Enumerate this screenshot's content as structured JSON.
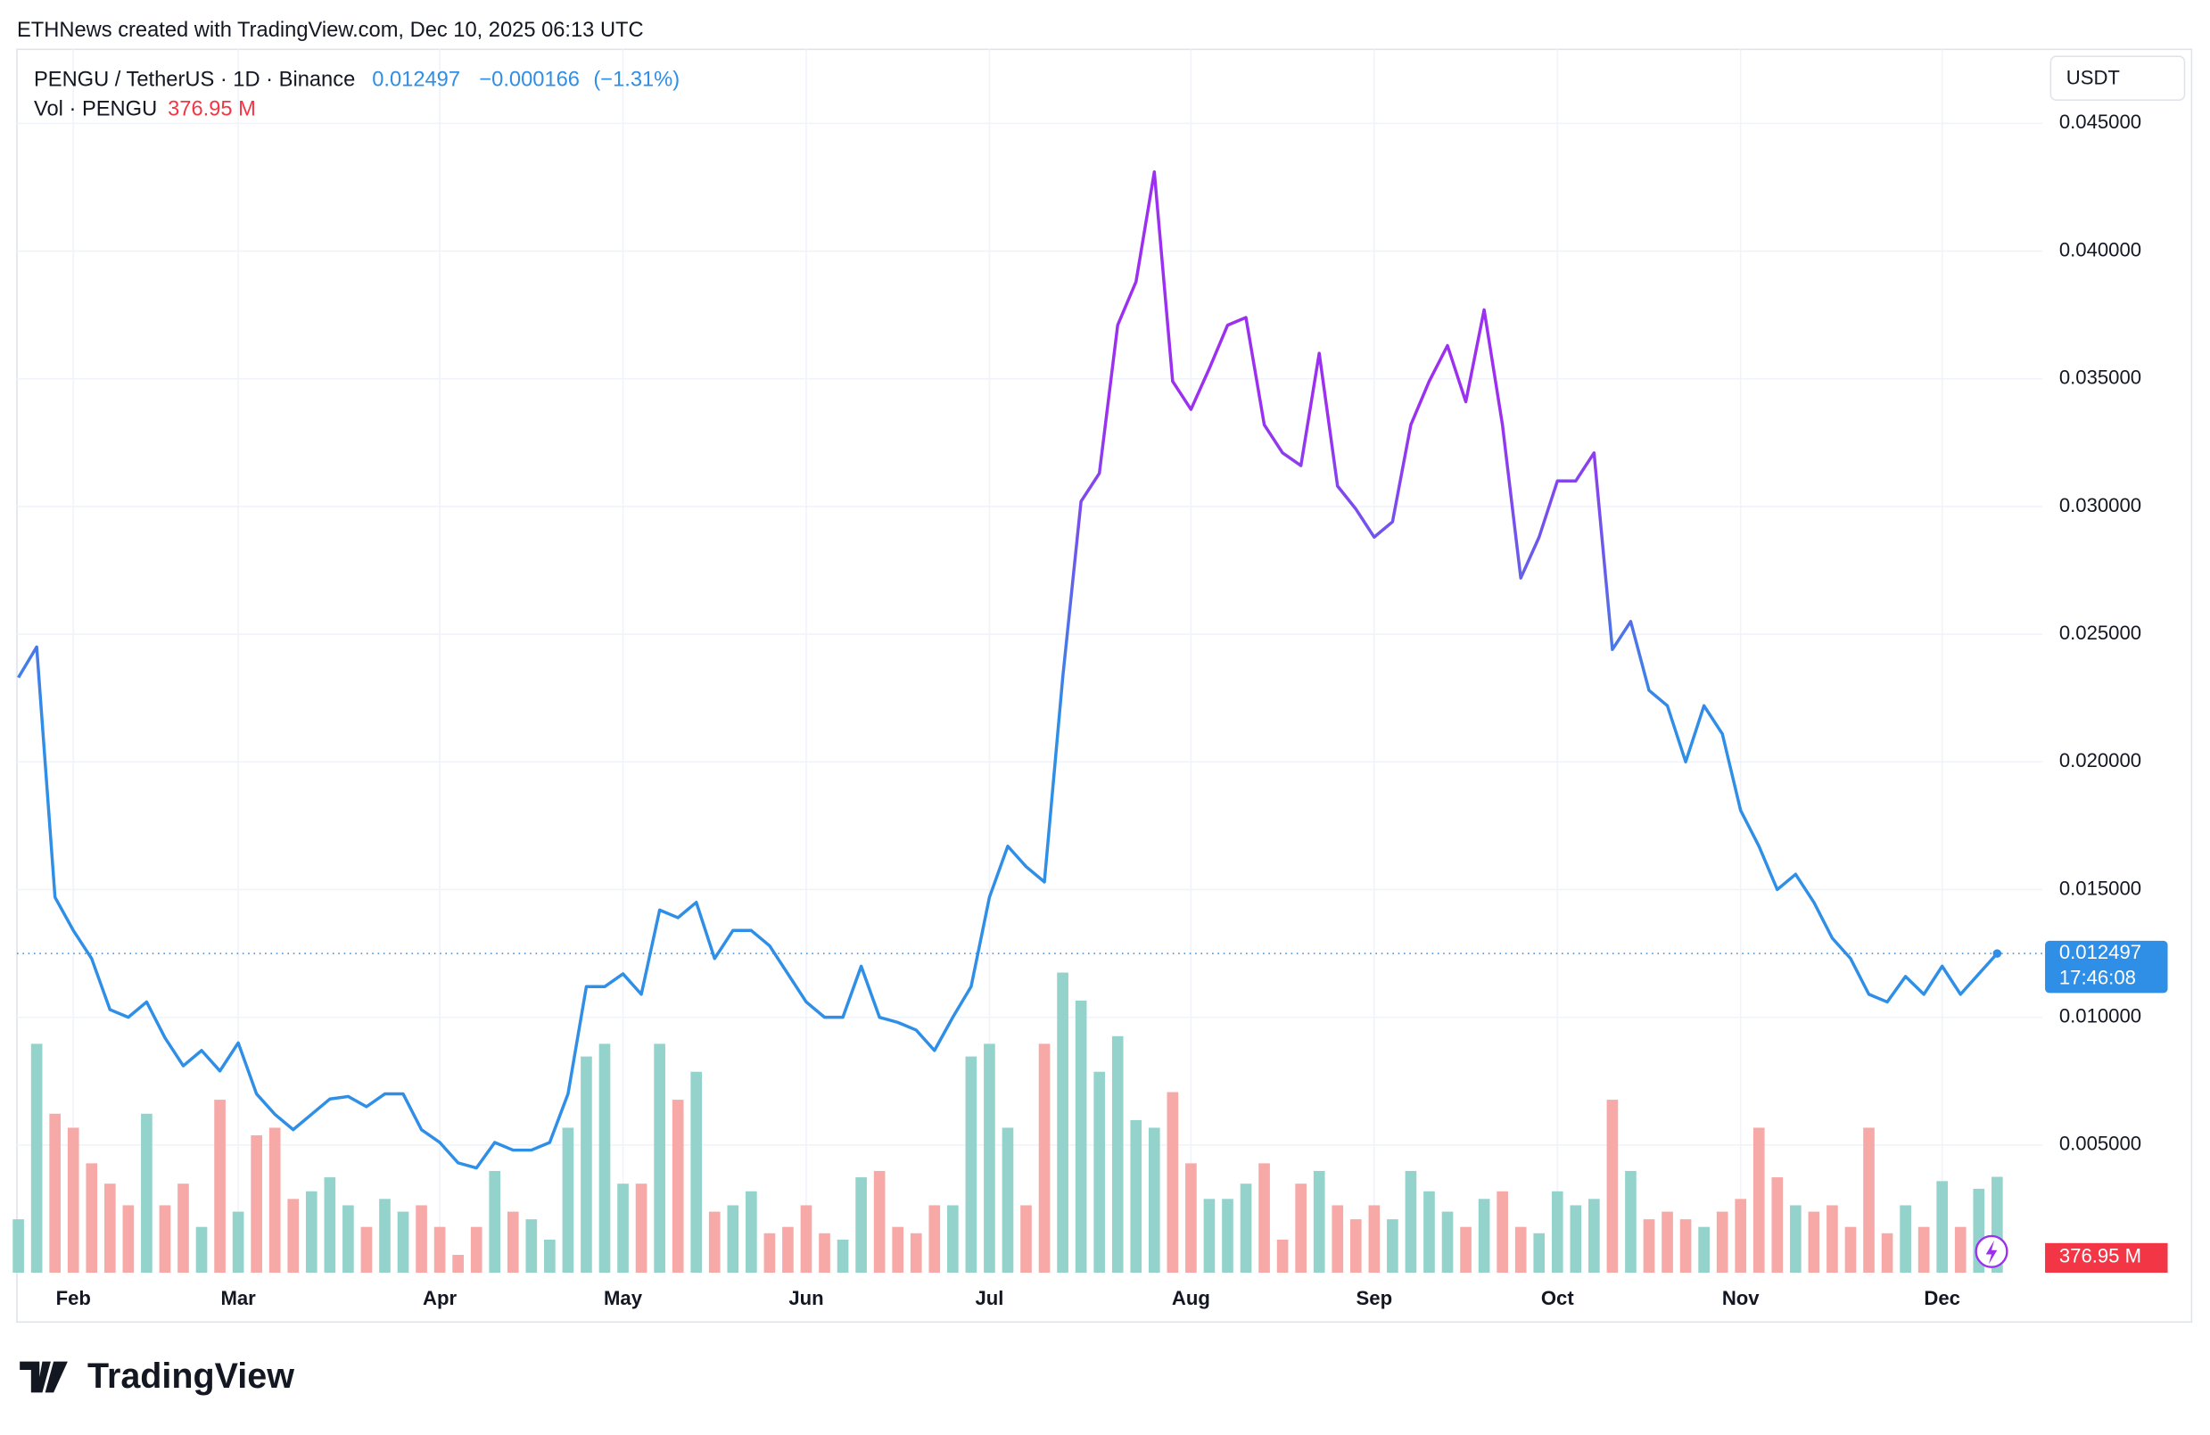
{
  "header": {
    "text": "ETHNews created with TradingView.com, Dec 10, 2025 06:13 UTC",
    "change": "−0.000166",
    "change_pct": "(−1.31%)",
    "currency": "USDT",
    "countdown": "17:46:08",
    "brand": "TradingView"
  },
  "chart_data": {
    "type": "line",
    "categories": [
      null,
      null,
      null,
      "Feb",
      null,
      null,
      null,
      null,
      null,
      null,
      null,
      null,
      "Mar",
      null,
      null,
      null,
      null,
      null,
      null,
      null,
      null,
      null,
      null,
      "Apr",
      null,
      null,
      null,
      null,
      null,
      null,
      null,
      null,
      null,
      "May",
      null,
      null,
      null,
      null,
      null,
      null,
      null,
      null,
      null,
      "Jun",
      null,
      null,
      null,
      null,
      null,
      null,
      null,
      null,
      null,
      "Jul",
      null,
      null,
      null,
      null,
      null,
      null,
      null,
      null,
      null,
      null,
      "Aug",
      null,
      null,
      null,
      null,
      null,
      null,
      null,
      null,
      null,
      "Sep",
      null,
      null,
      null,
      null,
      null,
      null,
      null,
      null,
      null,
      "Oct",
      null,
      null,
      null,
      null,
      null,
      null,
      null,
      null,
      null,
      "Nov",
      null,
      null,
      null,
      null,
      null,
      null,
      null,
      null,
      null,
      null,
      "Dec",
      null,
      null,
      null
    ],
    "series": [
      {
        "name": "PENGU / TetherUS · 1D · Binance",
        "color": "#2f8ee5",
        "high_color": "#9b30f0",
        "values": [
          0.0233,
          0.0245,
          0.0147,
          0.0134,
          0.0123,
          0.0103,
          0.01,
          0.0106,
          0.0092,
          0.0081,
          0.0087,
          0.0079,
          0.009,
          0.007,
          0.0062,
          0.0056,
          0.0062,
          0.0068,
          0.0069,
          0.0065,
          0.007,
          0.007,
          0.0056,
          0.0051,
          0.0043,
          0.0041,
          0.0051,
          0.0048,
          0.0048,
          0.0051,
          0.007,
          0.0112,
          0.0112,
          0.0117,
          0.0109,
          0.0142,
          0.0139,
          0.0145,
          0.0123,
          0.0134,
          0.0134,
          0.0128,
          0.0117,
          0.0106,
          0.01,
          0.01,
          0.012,
          0.01,
          0.0098,
          0.0095,
          0.0087,
          0.01,
          0.0112,
          0.0147,
          0.0167,
          0.0159,
          0.0153,
          0.0233,
          0.0302,
          0.0313,
          0.0371,
          0.0388,
          0.0431,
          0.0349,
          0.0338,
          0.0354,
          0.0371,
          0.0374,
          0.0332,
          0.0321,
          0.0316,
          0.036,
          0.0308,
          0.0299,
          0.0288,
          0.0294,
          0.0332,
          0.0349,
          0.0363,
          0.0341,
          0.0377,
          0.0332,
          0.0272,
          0.0288,
          0.031,
          0.031,
          0.0321,
          0.0244,
          0.0255,
          0.0228,
          0.0222,
          0.02,
          0.0222,
          0.0211,
          0.0181,
          0.0167,
          0.015,
          0.0156,
          0.0145,
          0.0131,
          0.0123,
          0.0109,
          0.0106,
          0.0116,
          0.0109,
          0.012,
          0.0109,
          0.0117,
          0.012497
        ]
      },
      {
        "name": "Vol · PENGU",
        "type": "bar",
        "up_color": "#93d3cc",
        "down_color": "#f6a9a7",
        "values": [
          210000000,
          900000000,
          625000000,
          570000000,
          430000000,
          350000000,
          265000000,
          625000000,
          265000000,
          350000000,
          180000000,
          680000000,
          240000000,
          540000000,
          570000000,
          290000000,
          320000000,
          375000000,
          265000000,
          180000000,
          290000000,
          240000000,
          265000000,
          180000000,
          70000000,
          180000000,
          400000000,
          240000000,
          210000000,
          130000000,
          570000000,
          850000000,
          900000000,
          350000000,
          350000000,
          900000000,
          680000000,
          790000000,
          240000000,
          265000000,
          320000000,
          155000000,
          180000000,
          265000000,
          155000000,
          130000000,
          375000000,
          400000000,
          180000000,
          155000000,
          265000000,
          265000000,
          850000000,
          900000000,
          570000000,
          265000000,
          900000000,
          1180000000,
          1070000000,
          790000000,
          930000000,
          600000000,
          570000000,
          710000000,
          430000000,
          290000000,
          290000000,
          350000000,
          430000000,
          130000000,
          350000000,
          400000000,
          265000000,
          210000000,
          265000000,
          210000000,
          400000000,
          320000000,
          240000000,
          180000000,
          290000000,
          320000000,
          180000000,
          155000000,
          320000000,
          265000000,
          290000000,
          680000000,
          400000000,
          210000000,
          240000000,
          210000000,
          180000000,
          240000000,
          290000000,
          570000000,
          375000000,
          265000000,
          240000000,
          265000000,
          180000000,
          570000000,
          155000000,
          265000000,
          180000000,
          360000000,
          180000000,
          330000000,
          376950000
        ],
        "value_labels": [
          null,
          null,
          null,
          null,
          null,
          null,
          null,
          null,
          null,
          null,
          null,
          null,
          null,
          null,
          null,
          null,
          null,
          null,
          null,
          null,
          null,
          null,
          null,
          null,
          null,
          null,
          null,
          null,
          null,
          null,
          null,
          null,
          null,
          null,
          null,
          null,
          null,
          null,
          null,
          null,
          null,
          null,
          null,
          null,
          null,
          null,
          null,
          null,
          null,
          null,
          null,
          null,
          null,
          null,
          null,
          null,
          null,
          null,
          null,
          null,
          null,
          null,
          null,
          null,
          null,
          null,
          null,
          null,
          null,
          null,
          null,
          null,
          null,
          null,
          null,
          null,
          null,
          null,
          null,
          null,
          null,
          null,
          null,
          null,
          null,
          null,
          null,
          null,
          null,
          null,
          null,
          null,
          null,
          null,
          null,
          null,
          null,
          null,
          null,
          null,
          null,
          null,
          null,
          null,
          null,
          null,
          null,
          null,
          "376.95 M"
        ],
        "ylim": [
          0,
          1900000000
        ]
      }
    ],
    "ylim": [
      0,
      0.0479
    ],
    "yticks": [
      {
        "value": 0.005,
        "label": "0.005000"
      },
      {
        "value": 0.01,
        "label": "0.010000"
      },
      {
        "value": 0.015,
        "label": "0.015000"
      },
      {
        "value": 0.02,
        "label": "0.020000"
      },
      {
        "value": 0.025,
        "label": "0.025000"
      },
      {
        "value": 0.03,
        "label": "0.030000"
      },
      {
        "value": 0.035,
        "label": "0.035000"
      },
      {
        "value": 0.04,
        "label": "0.040000"
      },
      {
        "value": 0.045,
        "label": "0.045000"
      }
    ],
    "grid": true
  }
}
